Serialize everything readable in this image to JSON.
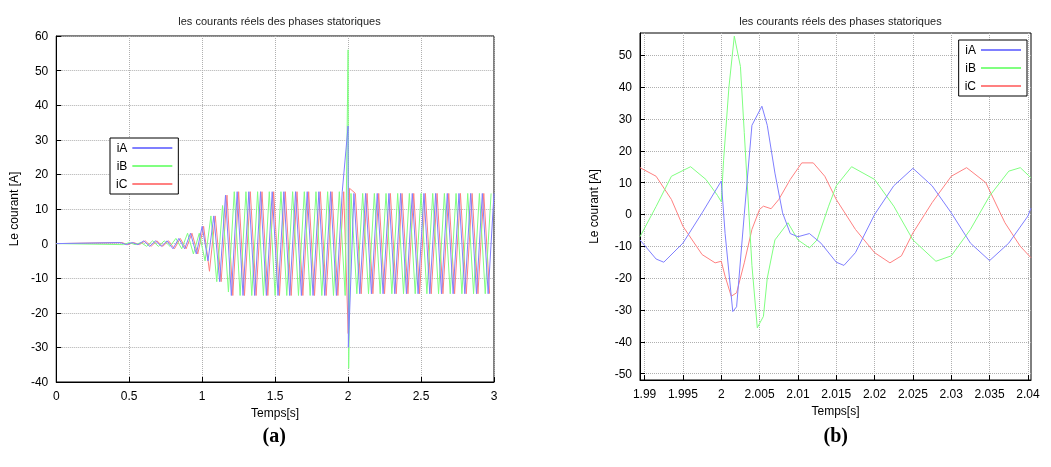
{
  "chart_data": [
    {
      "type": "line",
      "title": "les courants réels des phases statoriques",
      "xlabel": "Temps[s]",
      "ylabel": "Le courant [A]",
      "annotations": [
        "(a)"
      ],
      "xlim": [
        0,
        3
      ],
      "xticks": [
        0,
        0.5,
        1,
        1.5,
        2,
        2.5,
        3
      ],
      "ylim": [
        -40,
        60
      ],
      "yticks": [
        -40,
        -30,
        -20,
        -10,
        0,
        10,
        20,
        30,
        40,
        50,
        60
      ],
      "grid": true,
      "legend": "left",
      "line_style": "solid",
      "marker": "none",
      "series": [
        {
          "name": "iA",
          "color": "#7f7fff",
          "x": [
            0,
            0.44,
            0.48,
            0.52,
            0.56,
            0.6,
            0.64,
            0.68,
            0.72,
            0.76,
            0.8,
            0.84,
            0.88,
            0.92,
            0.96,
            1.0,
            1.04,
            1.08,
            1.12,
            1.16,
            1.2,
            1.24,
            1.28,
            1.32,
            1.36,
            1.4,
            1.44,
            1.48,
            1.52,
            1.56,
            1.6,
            1.64,
            1.68,
            1.72,
            1.76,
            1.8,
            1.84,
            1.88,
            1.92,
            1.96,
            2.0,
            2.002,
            2.04,
            2.08,
            2.12,
            2.16,
            2.2,
            2.24,
            2.28,
            2.32,
            2.36,
            2.4,
            2.44,
            2.48,
            2.52,
            2.56,
            2.6,
            2.64,
            2.68,
            2.72,
            2.76,
            2.8,
            2.84,
            2.88,
            2.92,
            2.96,
            3.0
          ],
          "values": [
            0,
            0.3,
            -0.3,
            0.3,
            -0.3,
            0.8,
            -0.8,
            0.8,
            -0.8,
            0.8,
            -1.5,
            1.5,
            -1.5,
            3,
            -3,
            5,
            -5,
            8,
            -11,
            14,
            -15,
            15,
            -15,
            15,
            -15,
            15,
            -15,
            15,
            -15,
            15,
            -15,
            15,
            -15,
            15,
            -15,
            15,
            -15,
            15,
            -15,
            15,
            34,
            -30,
            14.5,
            -14.5,
            14.5,
            -14.5,
            14.5,
            -14.5,
            14.5,
            -14.5,
            14.5,
            -14.5,
            14.5,
            -14.5,
            14.5,
            -14.5,
            14.5,
            -14.5,
            14.5,
            -14.5,
            14.5,
            -14.5,
            14.5,
            -14.5,
            14.5,
            -14.5,
            14.5
          ]
        },
        {
          "name": "iB",
          "color": "#80ff80",
          "x": [
            0,
            0.46,
            0.5,
            0.54,
            0.58,
            0.62,
            0.66,
            0.7,
            0.74,
            0.78,
            0.82,
            0.86,
            0.9,
            0.94,
            0.98,
            1.02,
            1.06,
            1.1,
            1.14,
            1.18,
            1.22,
            1.26,
            1.3,
            1.34,
            1.38,
            1.42,
            1.46,
            1.5,
            1.54,
            1.58,
            1.62,
            1.66,
            1.7,
            1.74,
            1.78,
            1.82,
            1.86,
            1.9,
            1.94,
            1.98,
            2.0,
            2.004,
            2.02,
            2.06,
            2.1,
            2.14,
            2.18,
            2.22,
            2.26,
            2.3,
            2.34,
            2.38,
            2.42,
            2.46,
            2.5,
            2.54,
            2.58,
            2.62,
            2.66,
            2.7,
            2.74,
            2.78,
            2.82,
            2.86,
            2.9,
            2.94,
            2.98
          ],
          "values": [
            0,
            -0.3,
            0.3,
            -0.3,
            0.3,
            -0.8,
            0.8,
            -0.8,
            0.8,
            -0.8,
            1.5,
            -1.5,
            3,
            -3,
            3,
            -5,
            8,
            -11,
            11,
            -14,
            15,
            -15,
            15,
            -15,
            15,
            -15,
            15,
            -15,
            15,
            -15,
            15,
            -15,
            15,
            -15,
            15,
            -15,
            15,
            -15,
            15,
            -15,
            56,
            -36,
            14.5,
            -14.5,
            14.5,
            -14.5,
            14.5,
            -14.5,
            14.5,
            -14.5,
            14.5,
            -14.5,
            14.5,
            -14.5,
            14.5,
            -14.5,
            14.5,
            -14.5,
            14.5,
            -14.5,
            14.5,
            -14.5,
            14.5,
            -14.5,
            14.5,
            -14.5,
            14.5
          ]
        },
        {
          "name": "iC",
          "color": "#ff8080",
          "x": [
            0,
            0.45,
            0.49,
            0.53,
            0.57,
            0.61,
            0.65,
            0.69,
            0.73,
            0.77,
            0.81,
            0.85,
            0.89,
            0.93,
            0.97,
            1.01,
            1.05,
            1.09,
            1.13,
            1.17,
            1.21,
            1.25,
            1.29,
            1.33,
            1.37,
            1.41,
            1.45,
            1.49,
            1.53,
            1.57,
            1.61,
            1.65,
            1.69,
            1.73,
            1.77,
            1.81,
            1.85,
            1.89,
            1.93,
            1.97,
            2.001,
            2.01,
            2.05,
            2.09,
            2.13,
            2.17,
            2.21,
            2.25,
            2.29,
            2.33,
            2.37,
            2.41,
            2.45,
            2.49,
            2.53,
            2.57,
            2.61,
            2.65,
            2.69,
            2.73,
            2.77,
            2.81,
            2.85,
            2.89,
            2.93,
            2.97
          ],
          "values": [
            0,
            0.3,
            -0.3,
            0.3,
            -0.3,
            0.8,
            -0.8,
            0.8,
            -0.8,
            0.8,
            -1.5,
            1.5,
            -1.5,
            3,
            -3,
            5,
            -8,
            8,
            -11,
            14,
            -15,
            15,
            -15,
            15,
            -15,
            15,
            -15,
            15,
            -15,
            15,
            -15,
            15,
            -15,
            15,
            -15,
            15,
            -15,
            15,
            -15,
            15,
            -26,
            16,
            14.5,
            -14.5,
            14.5,
            -14.5,
            14.5,
            -14.5,
            14.5,
            -14.5,
            14.5,
            -14.5,
            14.5,
            -14.5,
            14.5,
            -14.5,
            14.5,
            -14.5,
            14.5,
            -14.5,
            14.5,
            -14.5,
            14.5,
            -14.5,
            14.5,
            -14.5
          ]
        }
      ]
    },
    {
      "type": "line",
      "title": "les courants réels des phases statoriques",
      "xlabel": "Temps[s]",
      "ylabel": "Le courant [A]",
      "annotations": [
        "(b)"
      ],
      "xlim": [
        1.9894,
        2.0404
      ],
      "xticks": [
        1.99,
        1.995,
        2,
        2.005,
        2.01,
        2.015,
        2.02,
        2.025,
        2.03,
        2.035,
        2.04
      ],
      "ylim": [
        -52,
        57
      ],
      "yticks": [
        -50,
        -40,
        -30,
        -20,
        -10,
        0,
        10,
        20,
        30,
        40,
        50
      ],
      "grid": true,
      "legend": "top right",
      "line_style": "solid",
      "marker": "none",
      "series": [
        {
          "name": "iA",
          "color": "#7f7fff",
          "x": [
            1.9894,
            1.9915,
            1.9925,
            1.995,
            1.9975,
            2.0,
            2.0005,
            2.0015,
            2.002,
            2.003,
            2.004,
            2.0053,
            2.006,
            2.007,
            2.008,
            2.009,
            2.01,
            2.0115,
            2.013,
            2.015,
            2.016,
            2.0175,
            2.02,
            2.0225,
            2.025,
            2.0275,
            2.03,
            2.0325,
            2.035,
            2.0375,
            2.04,
            2.0404
          ],
          "values": [
            -8,
            -14,
            -15,
            -9,
            0.5,
            10.5,
            -6,
            -30.5,
            -29,
            0,
            28,
            34,
            28,
            13,
            0.5,
            -6,
            -7,
            -6,
            -9,
            -15,
            -16,
            -12,
            0,
            9,
            14.5,
            9,
            0.5,
            -9,
            -14.5,
            -9,
            -0.5,
            2
          ]
        },
        {
          "name": "iB",
          "color": "#80ff80",
          "x": [
            1.9894,
            1.9915,
            1.9935,
            1.996,
            1.998,
            1.9995,
            2.0,
            2.0003,
            2.001,
            2.0017,
            2.0025,
            2.003,
            2.004,
            2.0047,
            2.0055,
            2.006,
            2.007,
            2.0087,
            2.01,
            2.0115,
            2.0125,
            2.014,
            2.015,
            2.017,
            2.02,
            2.0225,
            2.025,
            2.028,
            2.03,
            2.0325,
            2.035,
            2.0375,
            2.039,
            2.0404
          ],
          "values": [
            -7,
            2.5,
            12,
            15,
            11,
            6,
            4,
            17,
            40,
            56,
            46.5,
            25.7,
            -16,
            -35.6,
            -32,
            -20,
            -8,
            -2.6,
            -8,
            -10.5,
            -8,
            2.6,
            9,
            15,
            11,
            2.6,
            -8,
            -14.7,
            -13,
            -4.7,
            5.8,
            13.6,
            14.7,
            11.5
          ]
        },
        {
          "name": "iC",
          "color": "#ff8080",
          "x": [
            1.9894,
            1.9915,
            1.9935,
            1.995,
            1.9975,
            1.9992,
            2.0,
            2.0005,
            2.0013,
            2.002,
            2.003,
            2.004,
            2.005,
            2.0055,
            2.0065,
            2.0075,
            2.009,
            2.0105,
            2.012,
            2.0135,
            2.015,
            2.0175,
            2.02,
            2.022,
            2.0235,
            2.025,
            2.0275,
            2.03,
            2.032,
            2.0345,
            2.037,
            2.039,
            2.0404
          ],
          "values": [
            14.7,
            12,
            4.7,
            -3.7,
            -12.6,
            -15.2,
            -14.7,
            -19.4,
            -25.7,
            -24.6,
            -15.2,
            -4.7,
            1.6,
            2.6,
            1.8,
            4.7,
            11,
            16.2,
            16.2,
            12,
            4.7,
            -4.7,
            -12,
            -15.2,
            -13,
            -5.8,
            3.7,
            12,
            14.7,
            10,
            -2.6,
            -10,
            -13.6
          ]
        }
      ]
    }
  ]
}
